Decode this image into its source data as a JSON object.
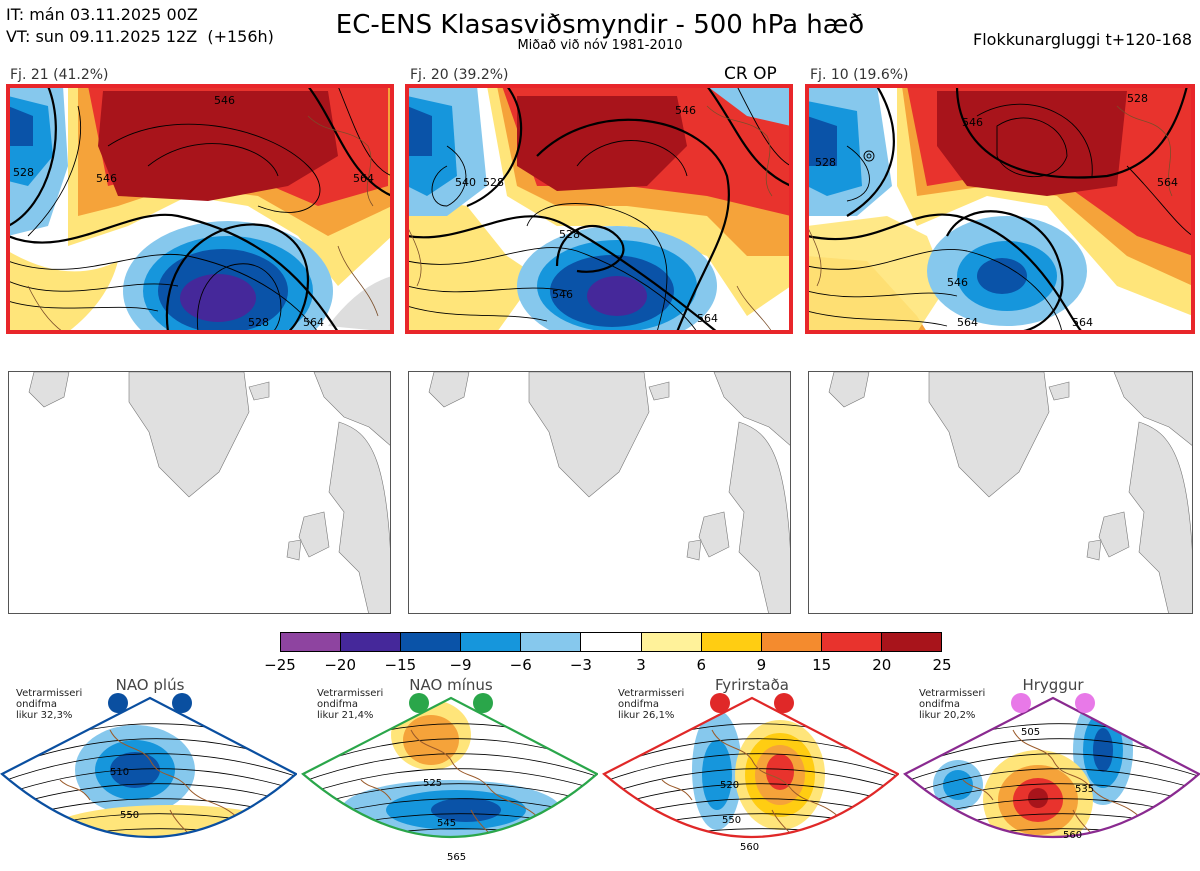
{
  "header": {
    "it_line": "IT: mán 03.11.2025 00Z",
    "vt_line": "VT: sun 09.11.2025 12Z  (+156h)",
    "title": "EC-ENS Klasasviðsmyndir - 500 hPa hæð",
    "subtitle": "Miðað við nóv 1981-2010",
    "window": "Flokkunargluggi t+120-168"
  },
  "clusters": [
    {
      "label": "Fj. 21 (41.2%)",
      "badge": "",
      "contours": [
        "546",
        "528",
        "546",
        "564",
        "528",
        "564"
      ]
    },
    {
      "label": "Fj. 20 (39.2%)",
      "badge": "CR OP",
      "contours": [
        "546",
        "540",
        "528",
        "528",
        "546",
        "564"
      ]
    },
    {
      "label": "Fj. 10 (19.6%)",
      "badge": "",
      "contours": [
        "528",
        "546",
        "528",
        "564",
        "546",
        "564",
        "564"
      ]
    }
  ],
  "colorbar": {
    "ticks": [
      "−25",
      "−20",
      "−15",
      "−9",
      "−6",
      "−3",
      "3",
      "6",
      "9",
      "15",
      "20",
      "25"
    ],
    "colors": [
      "#8e44a0",
      "#45289a",
      "#0a53a8",
      "#1696dc",
      "#86c8ed",
      "#ffffff",
      "#fff29a",
      "#ffcd12",
      "#f48b2e",
      "#e8332d",
      "#a8141b"
    ]
  },
  "regimes": [
    {
      "title": "NAO plús",
      "note": "Vetrarmisseri\nondifma\nlikur 32,3%",
      "frame": "#0a4fa0",
      "dot": "#0a4fa0",
      "levels": [
        "510",
        "550"
      ]
    },
    {
      "title": "NAO mínus",
      "note": "Vetrarmisseri\nondifma\nlikur 21,4%",
      "frame": "#2aa64a",
      "dot": "#2aa64a",
      "levels": [
        "525",
        "545",
        "565"
      ]
    },
    {
      "title": "Fyrirstaða",
      "note": "Vetrarmisseri\nondifma\nlikur 26,1%",
      "frame": "#e02828",
      "dot": "#e02828",
      "levels": [
        "520",
        "550",
        "560"
      ]
    },
    {
      "title": "Hryggur",
      "note": "Vetrarmisseri\nondifma\nlikur 20,2%",
      "frame": "#8a2a90",
      "dot": "#e879e8",
      "levels": [
        "505",
        "535",
        "560"
      ]
    }
  ]
}
